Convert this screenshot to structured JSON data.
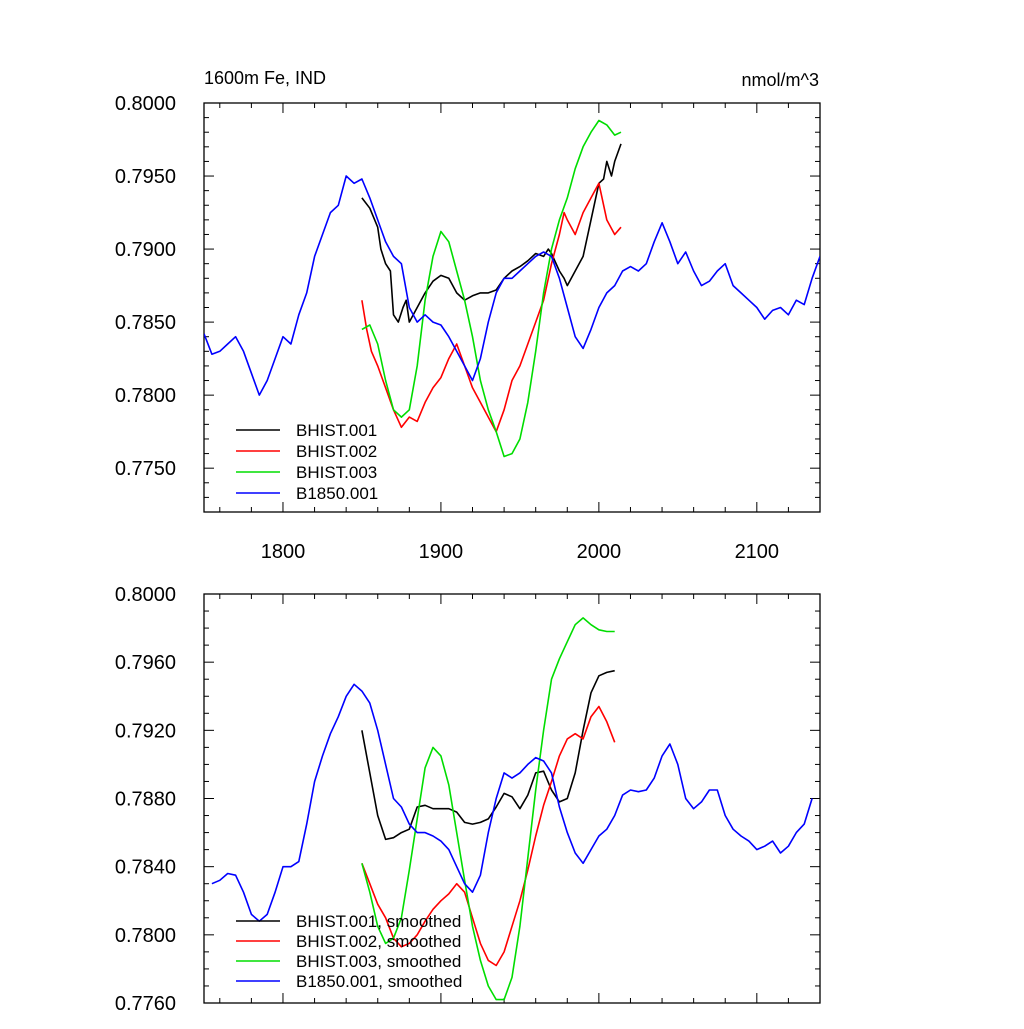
{
  "header": {
    "left_title": "1600m Fe, IND",
    "right_title": "nmol/m^3"
  },
  "chart_data": [
    {
      "type": "line",
      "title": "1600m Fe, IND",
      "units": "nmol/m^3",
      "xlim": [
        1750,
        2140
      ],
      "ylim": [
        0.772,
        0.8
      ],
      "x_ticks": [
        1800,
        1900,
        2000,
        2100
      ],
      "x_tick_labels": [
        "1800",
        "1900",
        "2000",
        "2100"
      ],
      "y_ticks": [
        0.775,
        0.78,
        0.785,
        0.79,
        0.795,
        0.8
      ],
      "y_tick_labels": [
        "0.7750",
        "0.7800",
        "0.7850",
        "0.7900",
        "0.7950",
        "0.8000"
      ],
      "grid": false,
      "legend_position": "bottom-left",
      "series": [
        {
          "name": "BHIST.001",
          "color": "#000000",
          "x": [
            1850,
            1855,
            1860,
            1862,
            1865,
            1868,
            1870,
            1873,
            1876,
            1878,
            1880,
            1885,
            1890,
            1895,
            1900,
            1905,
            1910,
            1915,
            1920,
            1925,
            1930,
            1935,
            1940,
            1945,
            1950,
            1955,
            1960,
            1965,
            1968,
            1970,
            1975,
            1978,
            1980,
            1985,
            1990,
            1995,
            2000,
            2003,
            2005,
            2008,
            2010,
            2014
          ],
          "y": [
            0.7935,
            0.7928,
            0.7915,
            0.79,
            0.789,
            0.7885,
            0.7855,
            0.785,
            0.786,
            0.7865,
            0.785,
            0.786,
            0.787,
            0.7878,
            0.7882,
            0.788,
            0.787,
            0.7865,
            0.7868,
            0.787,
            0.787,
            0.7872,
            0.788,
            0.7885,
            0.7888,
            0.7892,
            0.7897,
            0.7895,
            0.79,
            0.7897,
            0.7885,
            0.788,
            0.7875,
            0.7885,
            0.7895,
            0.792,
            0.7945,
            0.7948,
            0.796,
            0.795,
            0.796,
            0.7972
          ]
        },
        {
          "name": "BHIST.002",
          "color": "#ff0000",
          "x": [
            1850,
            1853,
            1856,
            1860,
            1865,
            1870,
            1875,
            1880,
            1885,
            1890,
            1895,
            1900,
            1905,
            1910,
            1915,
            1920,
            1925,
            1930,
            1935,
            1940,
            1945,
            1950,
            1955,
            1960,
            1965,
            1970,
            1975,
            1978,
            1980,
            1985,
            1990,
            1995,
            2000,
            2005,
            2010,
            2014
          ],
          "y": [
            0.7865,
            0.7845,
            0.783,
            0.782,
            0.7805,
            0.779,
            0.7778,
            0.7785,
            0.7782,
            0.7795,
            0.7805,
            0.7812,
            0.7825,
            0.7835,
            0.782,
            0.7805,
            0.7795,
            0.7785,
            0.7775,
            0.779,
            0.781,
            0.782,
            0.7835,
            0.785,
            0.7865,
            0.789,
            0.791,
            0.7925,
            0.792,
            0.791,
            0.7925,
            0.7935,
            0.7945,
            0.792,
            0.791,
            0.7915
          ]
        },
        {
          "name": "BHIST.003",
          "color": "#00dd00",
          "x": [
            1850,
            1855,
            1860,
            1865,
            1870,
            1875,
            1880,
            1885,
            1890,
            1895,
            1900,
            1905,
            1910,
            1915,
            1920,
            1925,
            1930,
            1935,
            1940,
            1945,
            1950,
            1955,
            1960,
            1965,
            1970,
            1975,
            1980,
            1985,
            1990,
            1995,
            2000,
            2005,
            2010,
            2014
          ],
          "y": [
            0.7845,
            0.7848,
            0.7835,
            0.781,
            0.779,
            0.7785,
            0.779,
            0.782,
            0.7865,
            0.7895,
            0.7912,
            0.7905,
            0.7885,
            0.7865,
            0.784,
            0.781,
            0.779,
            0.7775,
            0.7758,
            0.776,
            0.777,
            0.7795,
            0.783,
            0.787,
            0.79,
            0.792,
            0.7935,
            0.7955,
            0.797,
            0.798,
            0.7988,
            0.7985,
            0.7978,
            0.798
          ]
        },
        {
          "name": "B1850.001",
          "color": "#0000ff",
          "x": [
            1750,
            1755,
            1760,
            1765,
            1770,
            1775,
            1780,
            1785,
            1790,
            1795,
            1800,
            1805,
            1810,
            1815,
            1820,
            1825,
            1830,
            1835,
            1840,
            1845,
            1850,
            1855,
            1860,
            1865,
            1870,
            1875,
            1880,
            1885,
            1890,
            1895,
            1900,
            1905,
            1910,
            1915,
            1920,
            1925,
            1930,
            1935,
            1940,
            1945,
            1950,
            1955,
            1960,
            1965,
            1970,
            1975,
            1980,
            1985,
            1990,
            1995,
            2000,
            2005,
            2010,
            2015,
            2020,
            2025,
            2030,
            2035,
            2040,
            2045,
            2050,
            2055,
            2060,
            2065,
            2070,
            2075,
            2080,
            2085,
            2090,
            2095,
            2100,
            2105,
            2110,
            2115,
            2120,
            2125,
            2130,
            2135,
            2140
          ],
          "y": [
            0.7842,
            0.7828,
            0.783,
            0.7835,
            0.784,
            0.783,
            0.7815,
            0.78,
            0.781,
            0.7825,
            0.784,
            0.7835,
            0.7855,
            0.787,
            0.7895,
            0.791,
            0.7925,
            0.793,
            0.795,
            0.7945,
            0.7948,
            0.7935,
            0.792,
            0.7905,
            0.7895,
            0.789,
            0.786,
            0.785,
            0.7855,
            0.785,
            0.7848,
            0.784,
            0.783,
            0.782,
            0.781,
            0.7825,
            0.785,
            0.787,
            0.788,
            0.788,
            0.7885,
            0.789,
            0.7895,
            0.7898,
            0.7895,
            0.788,
            0.786,
            0.784,
            0.7832,
            0.7845,
            0.786,
            0.787,
            0.7875,
            0.7885,
            0.7888,
            0.7885,
            0.789,
            0.7905,
            0.7918,
            0.7905,
            0.789,
            0.7898,
            0.7885,
            0.7875,
            0.7878,
            0.7885,
            0.789,
            0.7875,
            0.787,
            0.7865,
            0.786,
            0.7852,
            0.7858,
            0.786,
            0.7855,
            0.7865,
            0.7862,
            0.788,
            0.7895
          ]
        }
      ]
    },
    {
      "type": "line",
      "xlim": [
        1750,
        2140
      ],
      "ylim": [
        0.776,
        0.8
      ],
      "x_ticks": [
        1800,
        1900,
        2000,
        2100
      ],
      "y_ticks": [
        0.776,
        0.78,
        0.784,
        0.788,
        0.792,
        0.796,
        0.8
      ],
      "y_tick_labels": [
        "0.7760",
        "0.7800",
        "0.7840",
        "0.7880",
        "0.7920",
        "0.7960",
        "0.8000"
      ],
      "grid": false,
      "legend_position": "bottom-left",
      "series": [
        {
          "name": "BHIST.001, smoothed",
          "color": "#000000",
          "x": [
            1850,
            1855,
            1860,
            1865,
            1870,
            1875,
            1880,
            1885,
            1890,
            1895,
            1900,
            1905,
            1910,
            1915,
            1920,
            1925,
            1930,
            1935,
            1940,
            1945,
            1950,
            1955,
            1960,
            1965,
            1970,
            1975,
            1980,
            1985,
            1990,
            1995,
            2000,
            2005,
            2010
          ],
          "y": [
            0.792,
            0.7895,
            0.787,
            0.7856,
            0.7857,
            0.786,
            0.7862,
            0.7875,
            0.7876,
            0.7874,
            0.7874,
            0.7874,
            0.7872,
            0.7866,
            0.7865,
            0.7866,
            0.7868,
            0.7875,
            0.7883,
            0.7881,
            0.7874,
            0.7882,
            0.7895,
            0.7896,
            0.7885,
            0.7878,
            0.788,
            0.7895,
            0.792,
            0.7942,
            0.7952,
            0.7954,
            0.7955
          ]
        },
        {
          "name": "BHIST.002, smoothed",
          "color": "#ff0000",
          "x": [
            1850,
            1855,
            1860,
            1865,
            1870,
            1875,
            1880,
            1885,
            1890,
            1895,
            1900,
            1905,
            1910,
            1915,
            1920,
            1925,
            1930,
            1935,
            1940,
            1945,
            1950,
            1955,
            1960,
            1965,
            1970,
            1975,
            1980,
            1985,
            1990,
            1995,
            2000,
            2005,
            2010
          ],
          "y": [
            0.7842,
            0.783,
            0.7818,
            0.781,
            0.7798,
            0.7793,
            0.7795,
            0.78,
            0.7808,
            0.7815,
            0.782,
            0.7824,
            0.783,
            0.7825,
            0.781,
            0.7795,
            0.7785,
            0.7782,
            0.779,
            0.7805,
            0.782,
            0.7838,
            0.7858,
            0.7876,
            0.789,
            0.7905,
            0.7915,
            0.7918,
            0.7915,
            0.7928,
            0.7934,
            0.7925,
            0.7913
          ]
        },
        {
          "name": "BHIST.003, smoothed",
          "color": "#00dd00",
          "x": [
            1850,
            1855,
            1860,
            1865,
            1870,
            1875,
            1880,
            1885,
            1890,
            1895,
            1900,
            1905,
            1910,
            1915,
            1920,
            1925,
            1930,
            1935,
            1940,
            1945,
            1950,
            1955,
            1960,
            1965,
            1970,
            1975,
            1980,
            1985,
            1990,
            1995,
            2000,
            2005,
            2010
          ],
          "y": [
            0.7842,
            0.7825,
            0.7805,
            0.7795,
            0.7798,
            0.781,
            0.7838,
            0.7868,
            0.7898,
            0.791,
            0.7905,
            0.7888,
            0.786,
            0.7832,
            0.7805,
            0.7785,
            0.777,
            0.7762,
            0.7762,
            0.7775,
            0.7805,
            0.7845,
            0.7885,
            0.792,
            0.795,
            0.7962,
            0.7972,
            0.7982,
            0.7986,
            0.7982,
            0.7979,
            0.7978,
            0.7978
          ]
        },
        {
          "name": "B1850.001, smoothed",
          "color": "#0000ff",
          "x": [
            1755,
            1760,
            1765,
            1770,
            1775,
            1780,
            1785,
            1790,
            1795,
            1800,
            1805,
            1810,
            1815,
            1820,
            1825,
            1830,
            1835,
            1840,
            1845,
            1850,
            1855,
            1860,
            1865,
            1870,
            1875,
            1880,
            1885,
            1890,
            1895,
            1900,
            1905,
            1910,
            1915,
            1920,
            1925,
            1930,
            1935,
            1940,
            1945,
            1950,
            1955,
            1960,
            1965,
            1970,
            1975,
            1980,
            1985,
            1990,
            1995,
            2000,
            2005,
            2010,
            2015,
            2020,
            2025,
            2030,
            2035,
            2040,
            2045,
            2050,
            2055,
            2060,
            2065,
            2070,
            2075,
            2080,
            2085,
            2090,
            2095,
            2100,
            2105,
            2110,
            2115,
            2120,
            2125,
            2130,
            2135
          ],
          "y": [
            0.783,
            0.7832,
            0.7836,
            0.7835,
            0.7825,
            0.7812,
            0.7808,
            0.7812,
            0.7825,
            0.784,
            0.784,
            0.7843,
            0.7865,
            0.789,
            0.7905,
            0.7918,
            0.7928,
            0.794,
            0.7947,
            0.7943,
            0.7936,
            0.792,
            0.79,
            0.788,
            0.7875,
            0.7865,
            0.786,
            0.786,
            0.7858,
            0.7855,
            0.785,
            0.784,
            0.783,
            0.7825,
            0.7835,
            0.786,
            0.788,
            0.7895,
            0.7892,
            0.7895,
            0.79,
            0.7904,
            0.7902,
            0.7895,
            0.7875,
            0.786,
            0.7848,
            0.7842,
            0.785,
            0.7858,
            0.7862,
            0.787,
            0.7882,
            0.7885,
            0.7884,
            0.7885,
            0.7892,
            0.7905,
            0.7912,
            0.79,
            0.788,
            0.7874,
            0.7878,
            0.7885,
            0.7885,
            0.787,
            0.7862,
            0.7858,
            0.7855,
            0.785,
            0.7852,
            0.7855,
            0.7848,
            0.7852,
            0.786,
            0.7865,
            0.788
          ]
        }
      ]
    }
  ]
}
